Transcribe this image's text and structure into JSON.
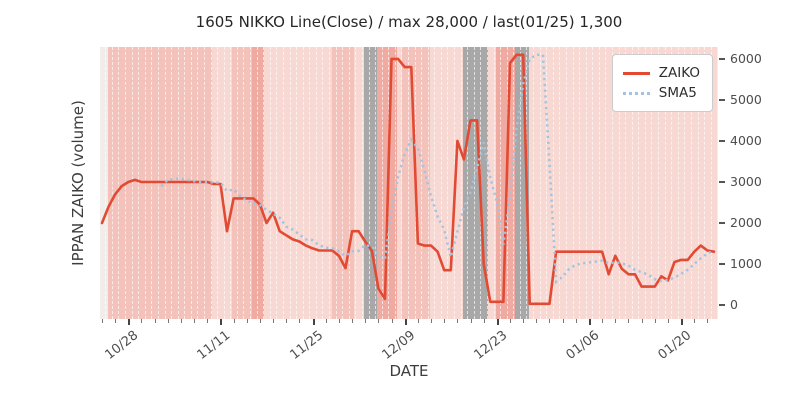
{
  "title": "1605 NIKKO Line(Close) / max 28,000 / last(01/25) 1,300",
  "axes": {
    "x_label": "DATE",
    "y_label": "IPPAN ZAIKO (volume)",
    "y_side": "right",
    "y_ticks": [
      0,
      1000,
      2000,
      3000,
      4000,
      5000,
      6000
    ],
    "x_major_ticks": [
      {
        "label": "10/28",
        "day_index": 4
      },
      {
        "label": "11/11",
        "day_index": 18
      },
      {
        "label": "11/25",
        "day_index": 32
      },
      {
        "label": "12/09",
        "day_index": 46
      },
      {
        "label": "12/23",
        "day_index": 60
      },
      {
        "label": "01/06",
        "day_index": 74
      },
      {
        "label": "01/20",
        "day_index": 88
      }
    ],
    "minor_tick_every_days": 2
  },
  "legend": {
    "items": [
      {
        "label": "ZAIKO",
        "line_style": "solid",
        "color": "#e24a33"
      },
      {
        "label": "SMA5",
        "line_style": "dotted",
        "color": "#a3c3e0"
      }
    ],
    "position": "upper-right"
  },
  "chart_data": {
    "type": "line",
    "title": "1605 NIKKO Line(Close) / max 28,000 / last(01/25) 1,300",
    "xlabel": "DATE",
    "ylabel": "IPPAN ZAIKO (volume)",
    "ylim": [
      -340,
      6290
    ],
    "grid": "vertical white dashed per-day gridlines, no horizontal grid",
    "x": [
      "10/24",
      "10/25",
      "10/26",
      "10/27",
      "10/28",
      "10/29",
      "10/30",
      "10/31",
      "11/01",
      "11/02",
      "11/03",
      "11/04",
      "11/05",
      "11/06",
      "11/07",
      "11/08",
      "11/09",
      "11/10",
      "11/11",
      "11/12",
      "11/13",
      "11/14",
      "11/15",
      "11/16",
      "11/17",
      "11/18",
      "11/19",
      "11/20",
      "11/21",
      "11/22",
      "11/23",
      "11/24",
      "11/25",
      "11/26",
      "11/27",
      "11/28",
      "11/29",
      "11/30",
      "12/01",
      "12/02",
      "12/03",
      "12/04",
      "12/05",
      "12/06",
      "12/07",
      "12/08",
      "12/09",
      "12/10",
      "12/11",
      "12/12",
      "12/13",
      "12/14",
      "12/15",
      "12/16",
      "12/17",
      "12/18",
      "12/19",
      "12/20",
      "12/21",
      "12/22",
      "12/23",
      "12/24",
      "12/25",
      "12/26",
      "12/27",
      "12/28",
      "12/29",
      "12/30",
      "12/31",
      "01/01",
      "01/02",
      "01/03",
      "01/04",
      "01/05",
      "01/06",
      "01/07",
      "01/08",
      "01/09",
      "01/10",
      "01/11",
      "01/12",
      "01/13",
      "01/14",
      "01/15",
      "01/16",
      "01/17",
      "01/18",
      "01/19",
      "01/20",
      "01/21",
      "01/22",
      "01/23",
      "01/24",
      "01/25"
    ],
    "series": [
      {
        "name": "ZAIKO",
        "color": "#e24a33",
        "style": "solid",
        "values": [
          2000,
          2400,
          2700,
          2900,
          3000,
          3050,
          3000,
          3000,
          3000,
          3000,
          3000,
          3000,
          3000,
          3000,
          3000,
          3000,
          3000,
          2950,
          2950,
          1800,
          2600,
          2600,
          2600,
          2600,
          2450,
          2000,
          2250,
          1800,
          1700,
          1600,
          1550,
          1450,
          1380,
          1330,
          1330,
          1330,
          1200,
          900,
          1800,
          1800,
          1550,
          1330,
          400,
          150,
          6000,
          6000,
          5800,
          5800,
          1500,
          1450,
          1450,
          1300,
          850,
          850,
          4000,
          3550,
          4500,
          4500,
          1000,
          80,
          80,
          80,
          5900,
          6100,
          6100,
          30,
          30,
          30,
          30,
          1300,
          1300,
          1300,
          1300,
          1300,
          1300,
          1300,
          1300,
          750,
          1200,
          880,
          750,
          750,
          450,
          450,
          450,
          700,
          600,
          1050,
          1100,
          1100,
          1300,
          1450,
          1330,
          1300
        ]
      },
      {
        "name": "SMA5",
        "color": "#a3c3e0",
        "style": "dotted",
        "values": [
          null,
          null,
          null,
          null,
          null,
          null,
          null,
          null,
          null,
          2900,
          3050,
          3080,
          3080,
          3050,
          3020,
          3000,
          3000,
          2990,
          2980,
          2780,
          2820,
          2660,
          2540,
          2480,
          2440,
          2320,
          2230,
          2130,
          1910,
          1840,
          1720,
          1600,
          1580,
          1460,
          1400,
          1380,
          1310,
          1200,
          1310,
          1320,
          1460,
          1430,
          1240,
          1130,
          2290,
          3130,
          3690,
          4030,
          3820,
          3280,
          2650,
          2160,
          1830,
          1170,
          1790,
          2380,
          2750,
          3350,
          3960,
          3110,
          2510,
          1470,
          2650,
          4310,
          5400,
          6000,
          6100,
          6100,
          3450,
          570,
          690,
          880,
          980,
          1020,
          1040,
          1060,
          1080,
          1020,
          1040,
          1020,
          960,
          860,
          800,
          740,
          630,
          590,
          610,
          670,
          760,
          860,
          1000,
          1140,
          1260,
          1330
        ]
      }
    ],
    "background_bands": [
      {
        "start_day": 0.9,
        "end_day": 16.7,
        "color": "mid"
      },
      {
        "start_day": 16.7,
        "end_day": 19.8,
        "color": "light"
      },
      {
        "start_day": 19.8,
        "end_day": 22.8,
        "color": "mid"
      },
      {
        "start_day": 22.8,
        "end_day": 24.6,
        "color": "deep"
      },
      {
        "start_day": 24.6,
        "end_day": 35.0,
        "color": "light"
      },
      {
        "start_day": 35.0,
        "end_day": 38.3,
        "color": "mid"
      },
      {
        "start_day": 38.3,
        "end_day": 39.8,
        "color": "light"
      },
      {
        "start_day": 39.8,
        "end_day": 41.8,
        "color": "gray"
      },
      {
        "start_day": 41.8,
        "end_day": 44.9,
        "color": "deep"
      },
      {
        "start_day": 44.9,
        "end_day": 45.6,
        "color": "light"
      },
      {
        "start_day": 45.6,
        "end_day": 49.9,
        "color": "mid"
      },
      {
        "start_day": 49.9,
        "end_day": 54.8,
        "color": "light"
      },
      {
        "start_day": 54.8,
        "end_day": 58.6,
        "color": "gray"
      },
      {
        "start_day": 58.6,
        "end_day": 59.8,
        "color": "light"
      },
      {
        "start_day": 59.8,
        "end_day": 62.8,
        "color": "deep"
      },
      {
        "start_day": 62.8,
        "end_day": 64.9,
        "color": "gray"
      },
      {
        "start_day": 64.9,
        "end_day": 93.5,
        "color": "light"
      }
    ],
    "colors": {
      "zaiko": "#e24a33",
      "sma5": "#a3c3e0",
      "band_light": "#f7d8d2",
      "band_mid": "#f3c2ba",
      "band_deep": "#efaba1",
      "band_gray": "#a9a8a8",
      "plot_base": "#f1edeb"
    }
  }
}
